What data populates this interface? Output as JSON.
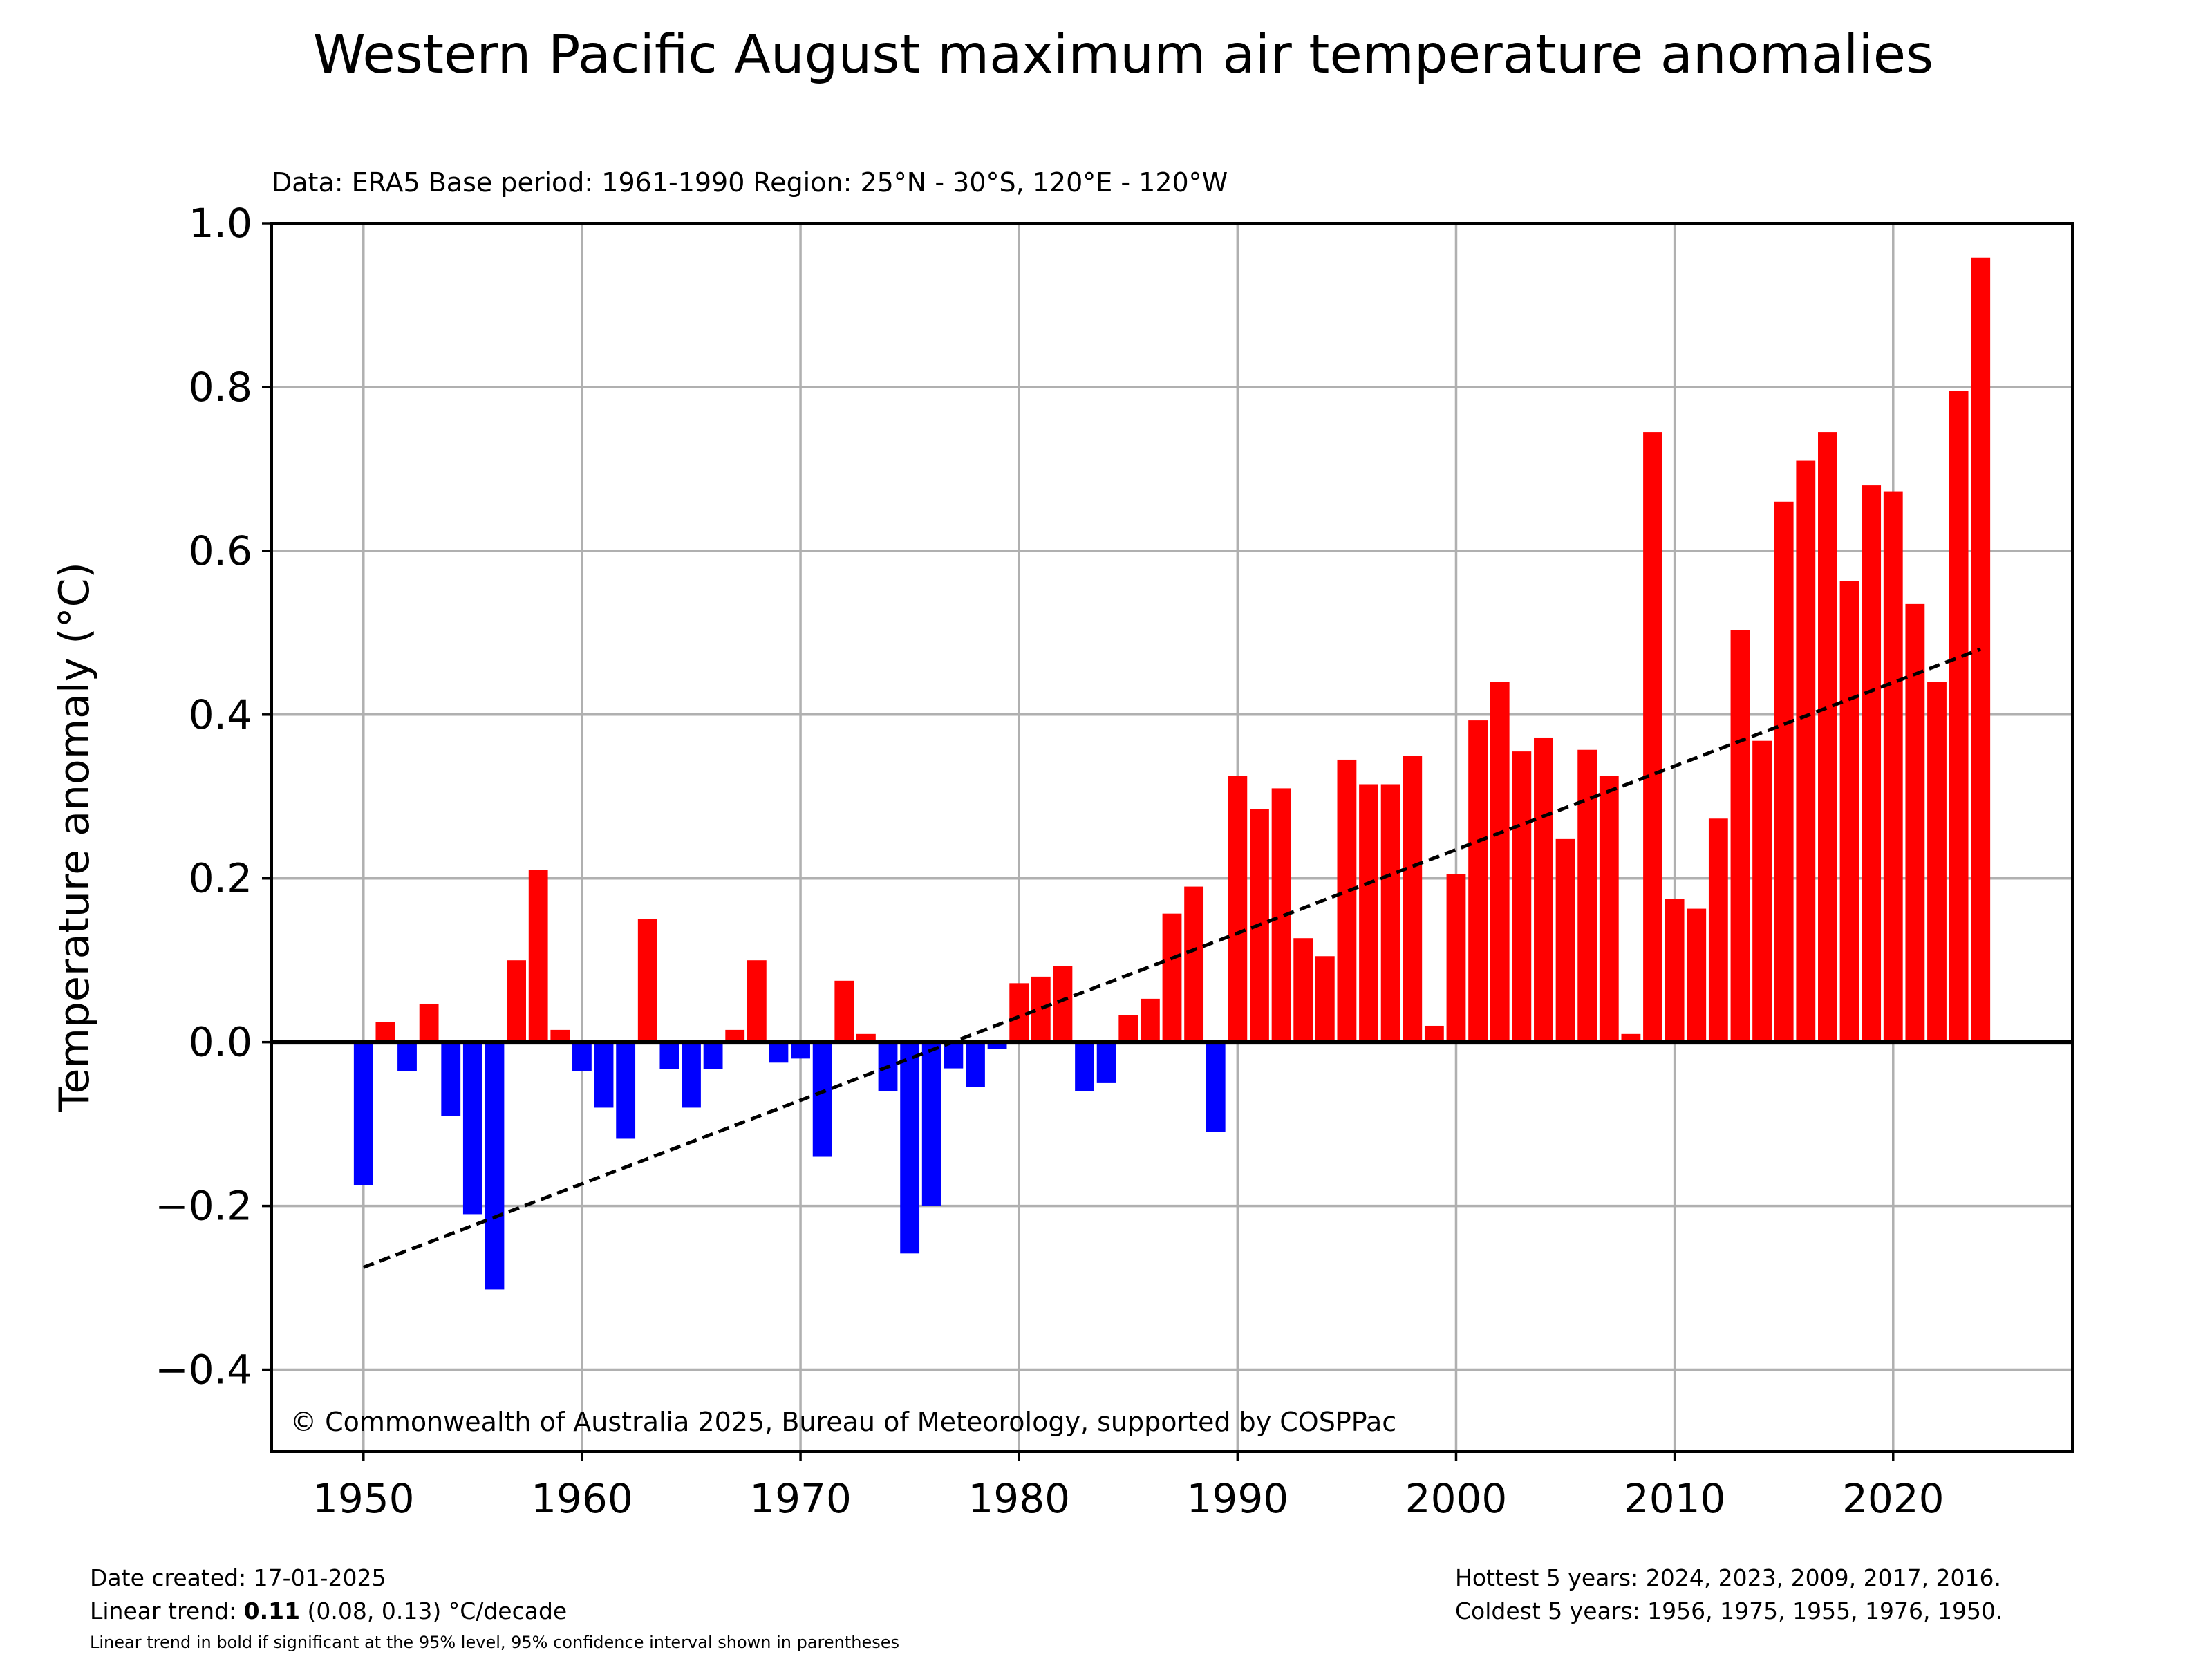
{
  "chart_data": {
    "type": "bar",
    "title": "Western Pacific August maximum air temperature anomalies",
    "subtitle": "Data: ERA5  Base period: 1961-1990  Region: 25°N - 30°S, 120°E - 120°W",
    "ylabel": "Temperature anomaly (°C)",
    "xlabel": "",
    "ylim": [
      -0.5,
      1.0
    ],
    "xlim": [
      1945.8,
      2028.2
    ],
    "y_ticks": [
      -0.4,
      -0.2,
      0.0,
      0.2,
      0.4,
      0.6,
      0.8,
      1.0
    ],
    "y_tick_labels": [
      "−0.4",
      "−0.2",
      "0.0",
      "0.2",
      "0.4",
      "0.6",
      "0.8",
      "1.0"
    ],
    "x_ticks": [
      1950,
      1960,
      1970,
      1980,
      1990,
      2000,
      2010,
      2020
    ],
    "x_tick_labels": [
      "1950",
      "1960",
      "1970",
      "1980",
      "1990",
      "2000",
      "2010",
      "2020"
    ],
    "grid": true,
    "copyright": "© Commonwealth of Australia 2025, Bureau of Meteorology, supported by COSPPac",
    "colors": {
      "positive": "#ff0000",
      "negative": "#0000ff",
      "trend": "#000000",
      "grid": "#b0b0b0"
    },
    "trend_line": {
      "x": [
        1950,
        2024
      ],
      "y": [
        -0.275,
        0.48
      ],
      "style": "dashed"
    },
    "years": [
      1950,
      1951,
      1952,
      1953,
      1954,
      1955,
      1956,
      1957,
      1958,
      1959,
      1960,
      1961,
      1962,
      1963,
      1964,
      1965,
      1966,
      1967,
      1968,
      1969,
      1970,
      1971,
      1972,
      1973,
      1974,
      1975,
      1976,
      1977,
      1978,
      1979,
      1980,
      1981,
      1982,
      1983,
      1984,
      1985,
      1986,
      1987,
      1988,
      1989,
      1990,
      1991,
      1992,
      1993,
      1994,
      1995,
      1996,
      1997,
      1998,
      1999,
      2000,
      2001,
      2002,
      2003,
      2004,
      2005,
      2006,
      2007,
      2008,
      2009,
      2010,
      2011,
      2012,
      2013,
      2014,
      2015,
      2016,
      2017,
      2018,
      2019,
      2020,
      2021,
      2022,
      2023,
      2024
    ],
    "values": [
      -0.175,
      0.025,
      -0.035,
      0.047,
      -0.09,
      -0.21,
      -0.302,
      0.1,
      0.21,
      0.015,
      -0.035,
      -0.08,
      -0.118,
      0.15,
      -0.033,
      -0.08,
      -0.033,
      0.015,
      0.1,
      -0.025,
      -0.02,
      -0.14,
      0.075,
      0.01,
      -0.06,
      -0.258,
      -0.2,
      -0.032,
      -0.055,
      -0.008,
      0.072,
      0.08,
      0.093,
      -0.06,
      -0.05,
      0.033,
      0.053,
      0.157,
      0.19,
      -0.11,
      0.325,
      0.285,
      0.31,
      0.127,
      0.105,
      0.345,
      0.315,
      0.315,
      0.35,
      0.02,
      0.205,
      0.393,
      0.44,
      0.355,
      0.372,
      0.248,
      0.357,
      0.325,
      0.01,
      0.745,
      0.175,
      0.163,
      0.273,
      0.503,
      0.368,
      0.66,
      0.71,
      0.745,
      0.563,
      0.68,
      0.672,
      0.535,
      0.44,
      0.795,
      0.958
    ]
  },
  "footer": {
    "date_created": "Date created: 17-01-2025",
    "trend_prefix": "Linear trend: ",
    "trend_value": "0.11",
    "trend_suffix": " (0.08, 0.13) °C/decade",
    "trend_note": "Linear trend in bold if significant at the 95% level, 95% confidence interval shown in parentheses",
    "hottest": "Hottest 5 years: 2024, 2023, 2009, 2017, 2016.",
    "coldest": "Coldest 5 years: 1956, 1975, 1955, 1976, 1950."
  }
}
